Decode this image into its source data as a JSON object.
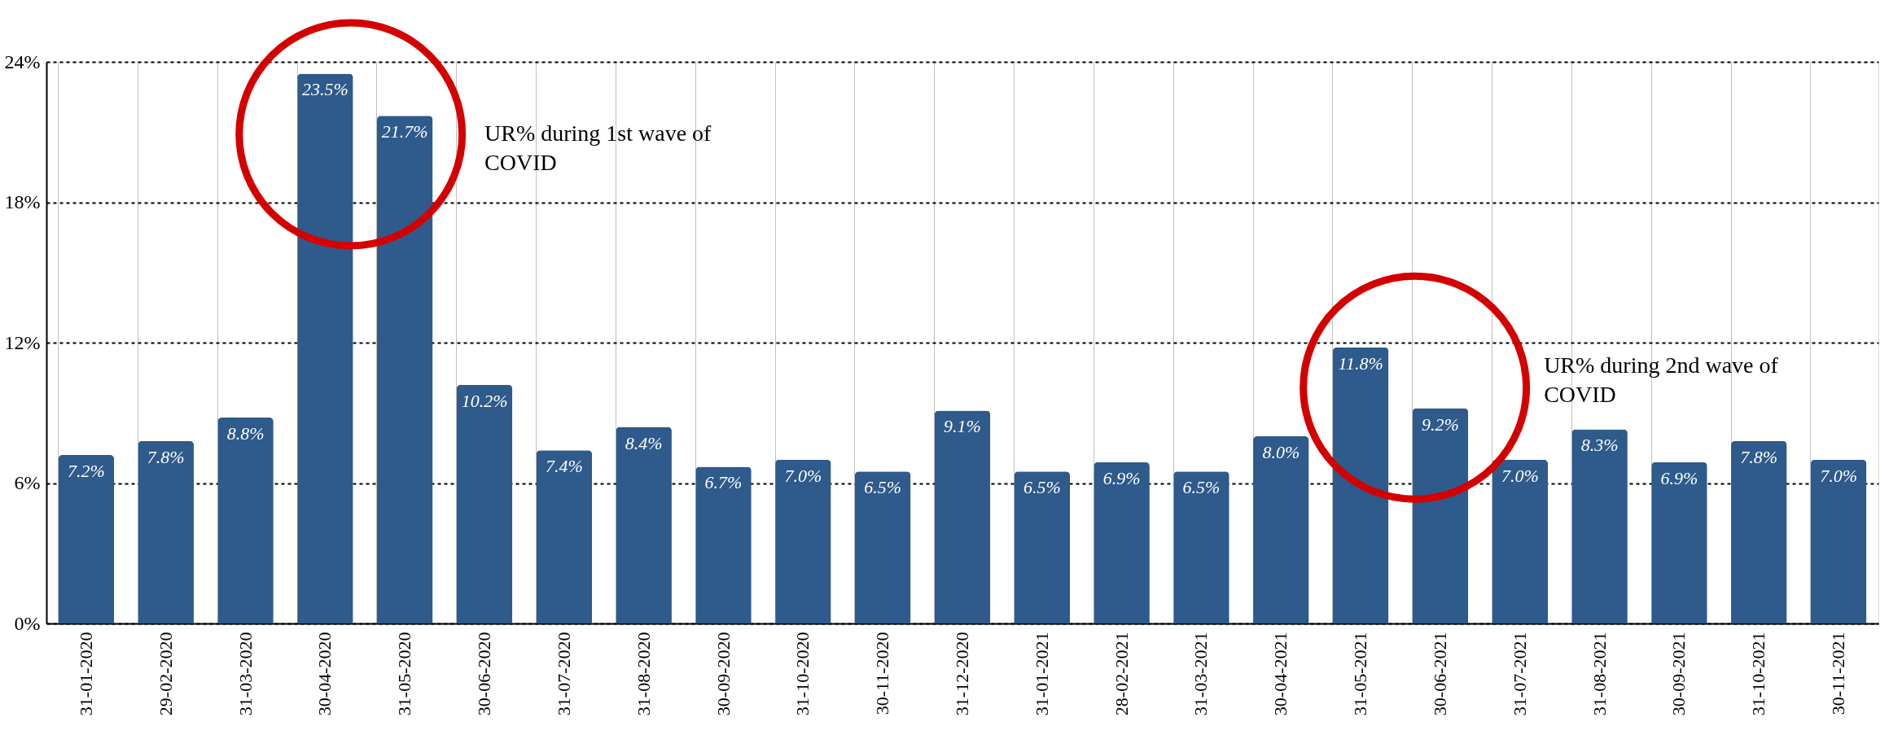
{
  "chart_data": {
    "type": "bar",
    "categories": [
      "31-01-2020",
      "29-02-2020",
      "31-03-2020",
      "30-04-2020",
      "31-05-2020",
      "30-06-2020",
      "31-07-2020",
      "31-08-2020",
      "30-09-2020",
      "31-10-2020",
      "30-11-2020",
      "31-12-2020",
      "31-01-2021",
      "28-02-2021",
      "31-03-2021",
      "30-04-2021",
      "31-05-2021",
      "30-06-2021",
      "31-07-2021",
      "31-08-2021",
      "30-09-2021",
      "31-10-2021",
      "30-11-2021"
    ],
    "values": [
      7.2,
      7.8,
      8.8,
      23.5,
      21.7,
      10.2,
      7.4,
      8.4,
      6.7,
      7.0,
      6.5,
      9.1,
      6.5,
      6.9,
      6.5,
      8.0,
      11.8,
      9.2,
      7.0,
      8.3,
      6.9,
      7.8,
      7.0
    ],
    "value_labels": [
      "7.2%",
      "7.8%",
      "8.8%",
      "23.5%",
      "21.7%",
      "10.2%",
      "7.4%",
      "8.4%",
      "6.7%",
      "7.0%",
      "6.5%",
      "9.1%",
      "6.5%",
      "6.9%",
      "6.5%",
      "8.0%",
      "11.8%",
      "9.2%",
      "7.0%",
      "8.3%",
      "6.9%",
      "7.8%",
      "7.0%"
    ],
    "color": "#2e5a8c",
    "ylim": [
      0,
      24
    ],
    "yticks": [
      {
        "value": 0,
        "label": "0%"
      },
      {
        "value": 6,
        "label": "6%"
      },
      {
        "value": 12,
        "label": "12%"
      },
      {
        "value": 18,
        "label": "18%"
      },
      {
        "value": 24,
        "label": "24%"
      }
    ],
    "grid": true,
    "annotations": [
      "UR% during 1st wave of\nCOVID",
      "UR% during 2nd wave of\nCOVID"
    ]
  }
}
